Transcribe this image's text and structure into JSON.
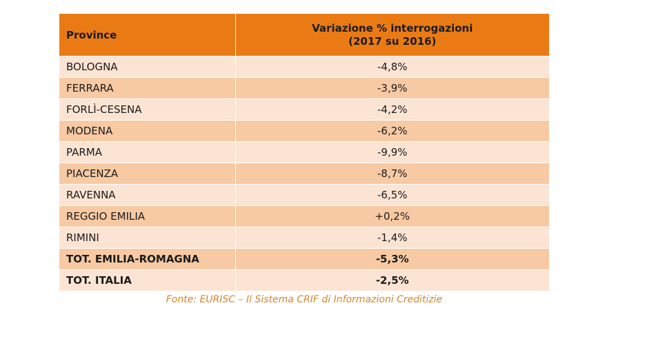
{
  "colors": {
    "header_bg": "#ea7b14",
    "row_light": "#fbe4d3",
    "row_dark": "#f7caa4",
    "source_text": "#d7852b"
  },
  "chart_data": {
    "type": "table",
    "columns": [
      "Province",
      "Variazione % interrogazioni (2017 su 2016)"
    ],
    "header": {
      "province": "Province",
      "value_line1": "Variazione % interrogazioni",
      "value_line2": "(2017 su 2016)"
    },
    "rows": [
      {
        "province": "BOLOGNA",
        "value": "-4,8%",
        "total": false
      },
      {
        "province": "FERRARA",
        "value": "-3,9%",
        "total": false
      },
      {
        "province": "FORLÌ-CESENA",
        "value": "-4,2%",
        "total": false
      },
      {
        "province": "MODENA",
        "value": "-6,2%",
        "total": false
      },
      {
        "province": "PARMA",
        "value": "-9,9%",
        "total": false
      },
      {
        "province": "PIACENZA",
        "value": "-8,7%",
        "total": false
      },
      {
        "province": "RAVENNA",
        "value": "-6,5%",
        "total": false
      },
      {
        "province": "REGGIO EMILIA",
        "value": "+0,2%",
        "total": false
      },
      {
        "province": "RIMINI",
        "value": "-1,4%",
        "total": false
      },
      {
        "province": "TOT. EMILIA-ROMAGNA",
        "value": "-5,3%",
        "total": true
      },
      {
        "province": "TOT. ITALIA",
        "value": "-2,5%",
        "total": true
      }
    ],
    "values": [
      -4.8,
      -3.9,
      -4.2,
      -6.2,
      -9.9,
      -8.7,
      -6.5,
      0.2,
      -1.4,
      -5.3,
      -2.5
    ],
    "source": "Fonte: EURISC – Il Sistema CRIF di Informazioni Creditizie"
  }
}
